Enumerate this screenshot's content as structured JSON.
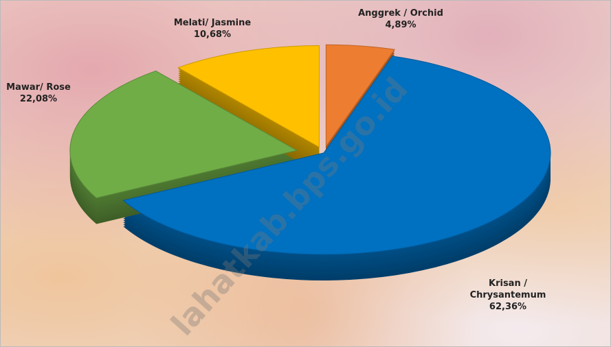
{
  "chart_data": {
    "type": "pie",
    "categories": [
      "Anggrek / Orchid",
      "Krisan / Chrysantemum",
      "Mawar/ Rose",
      "Melati/ Jasmine"
    ],
    "values": [
      4.89,
      62.36,
      22.08,
      10.68
    ],
    "value_labels": [
      "4,89%",
      "62,36%",
      "22,08%",
      "10,68%"
    ],
    "colors": [
      "#ed7d31",
      "#0070c0",
      "#70ad47",
      "#ffc000"
    ],
    "watermark": "lahatkab.bps.go.id"
  }
}
